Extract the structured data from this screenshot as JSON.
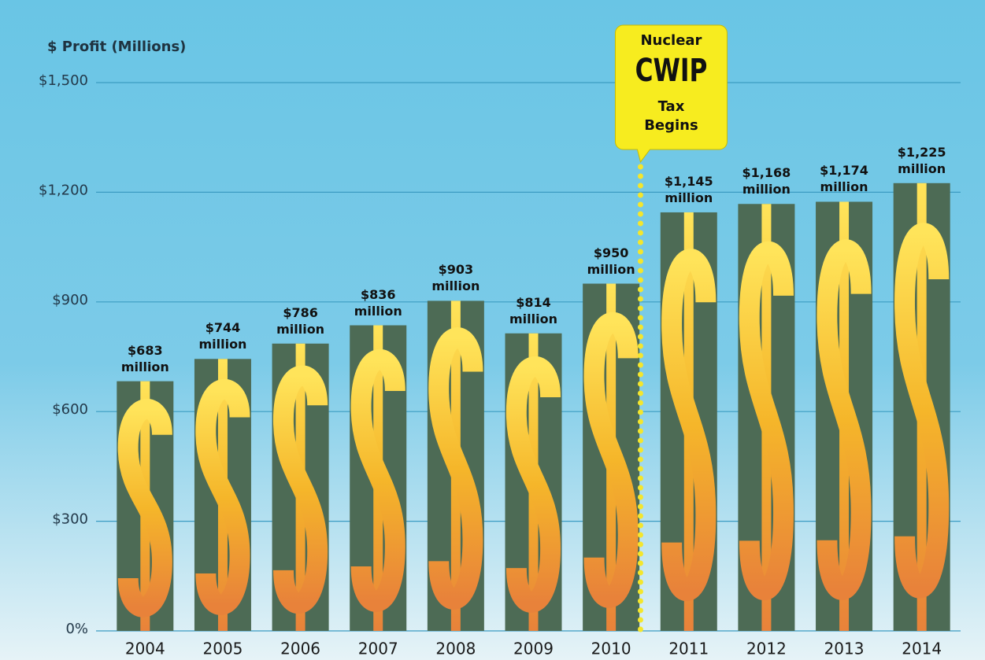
{
  "chart_data": {
    "type": "bar",
    "ylabel": "$ Profit (Millions)",
    "categories": [
      "2004",
      "2005",
      "2006",
      "2007",
      "2008",
      "2009",
      "2010",
      "2011",
      "2012",
      "2013",
      "2014"
    ],
    "values": [
      683,
      744,
      786,
      836,
      903,
      814,
      950,
      1145,
      1168,
      1174,
      1225
    ],
    "value_labels": [
      "$683 million",
      "$744 million",
      "$786 million",
      "$836 million",
      "$903 million",
      "$814 million",
      "$950 million",
      "$1,145 million",
      "$1,168 million",
      "$1,174 million",
      "$1,225 million"
    ],
    "color": "#4d6b55",
    "ylim": [
      0,
      1500
    ],
    "yticks": [
      {
        "value": 0,
        "label": "0%"
      },
      {
        "value": 300,
        "label": "$300"
      },
      {
        "value": 600,
        "label": "$600"
      },
      {
        "value": 900,
        "label": "$900"
      },
      {
        "value": 1200,
        "label": "$1,200"
      },
      {
        "value": 1500,
        "label": "$1,500"
      }
    ],
    "grid": true,
    "annotation": {
      "category": "2011",
      "lines": [
        "Nuclear",
        "CWIP",
        "Tax",
        "Begins"
      ]
    }
  }
}
